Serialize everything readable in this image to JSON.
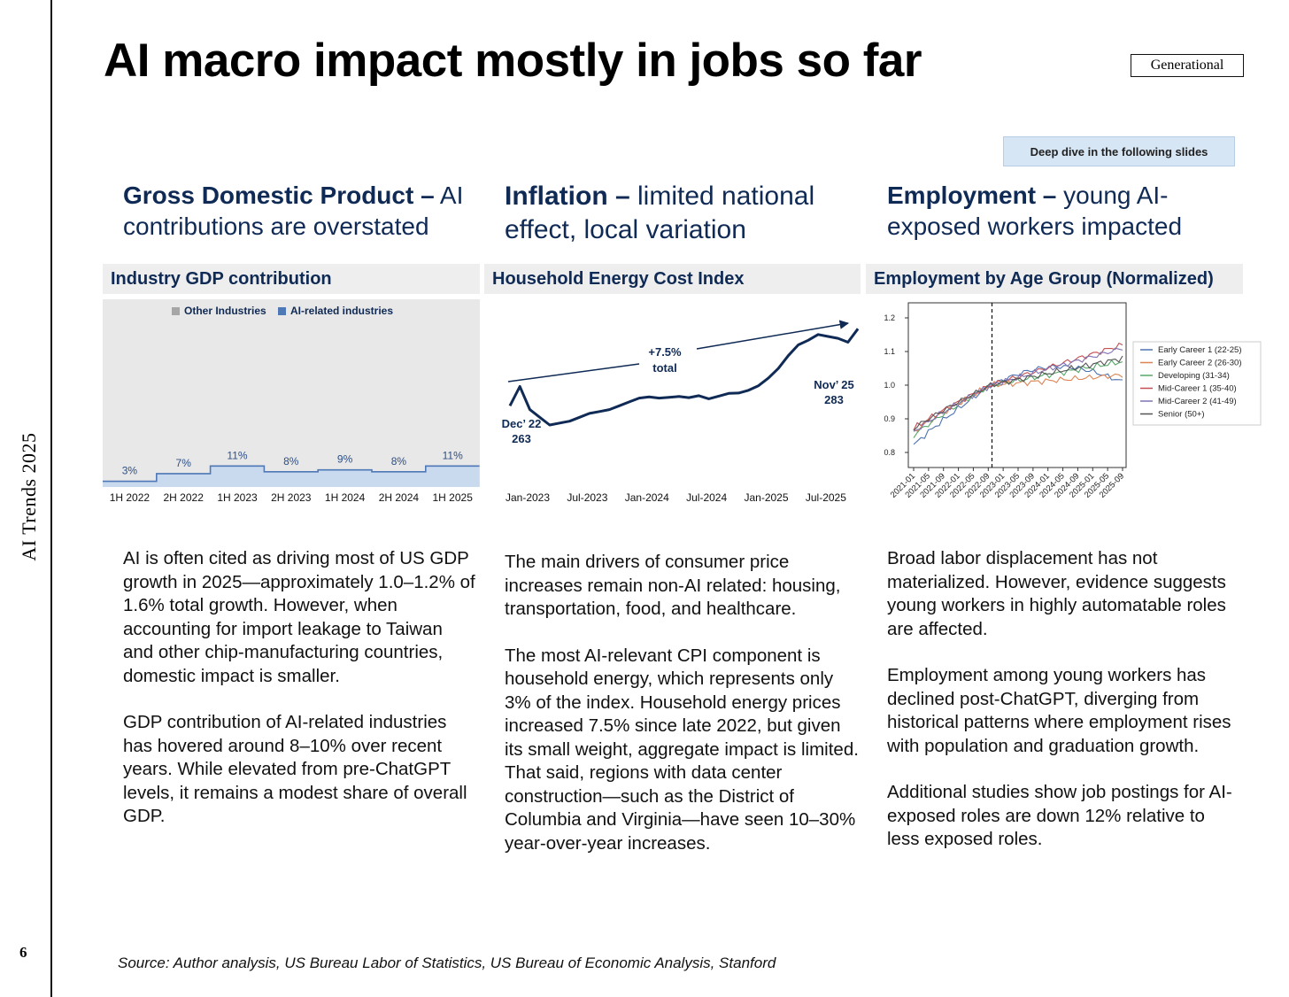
{
  "sidebar": {
    "title": "AI Trends 2025",
    "page_number": "6"
  },
  "header": {
    "title": "AI macro impact mostly in jobs so far",
    "brand": "Generational"
  },
  "callout": {
    "text": "Deep dive in the following slides"
  },
  "sections": [
    {
      "heading_bold": "Gross Domestic Product –",
      "heading_rest": " AI contributions are overstated",
      "chart_title": "Industry GDP contribution",
      "paragraphs": [
        "AI is often cited as driving most of US GDP growth in 2025—approximately 1.0–1.2% of 1.6% total growth. However, when accounting for import leakage to Taiwan and other chip-manufacturing countries, domestic impact is smaller.",
        "GDP contribution of AI-related industries has hovered around 8–10% over recent years. While elevated from pre-ChatGPT levels, it remains a modest share of overall GDP."
      ]
    },
    {
      "heading_bold": "Inflation –",
      "heading_rest": " limited national effect, local variation",
      "chart_title": "Household Energy Cost Index",
      "paragraphs": [
        "The main drivers of consumer price increases remain non-AI related: housing, transportation, food, and healthcare.",
        "The most AI-relevant CPI component is household energy, which represents only 3% of the index. Household energy prices increased 7.5% since late 2022, but given its small weight, aggregate impact is limited. That said, regions with data center construction—such as the District of Columbia and Virginia—have seen 10–30% year-over-year increases."
      ]
    },
    {
      "heading_bold": "Employment –",
      "heading_rest": " young AI-exposed workers impacted",
      "chart_title": "Employment by Age Group (Normalized)",
      "paragraphs": [
        "Broad labor displacement has not materialized. However, evidence suggests young workers in highly automatable roles are affected.",
        "Employment among young workers has declined post-ChatGPT, diverging from historical patterns where employment rises with population and graduation growth.",
        "Additional studies show job postings for AI-exposed roles are down 12% relative to less exposed roles."
      ]
    }
  ],
  "source": "Source: Author analysis, US Bureau Labor of Statistics, US Bureau of Economic Analysis, Stanford",
  "colors": {
    "navy": "#0f2a55",
    "ai_blue": "#4e79b6",
    "other_gray": "#e8e8e8"
  },
  "chart_data": [
    {
      "type": "area",
      "title": "Industry GDP contribution",
      "legend": [
        "Other Industries",
        "AI-related industries"
      ],
      "legend_position": "top-center",
      "categories": [
        "1H 2022",
        "2H 2022",
        "1H 2023",
        "2H 2023",
        "1H 2024",
        "2H 2024",
        "1H 2025"
      ],
      "series": [
        {
          "name": "AI-related industries",
          "values": [
            3,
            7,
            11,
            8,
            9,
            8,
            11
          ]
        }
      ],
      "labels": [
        "3%",
        "7%",
        "11%",
        "8%",
        "9%",
        "8%",
        "11%"
      ],
      "ylim": [
        0,
        100
      ]
    },
    {
      "type": "line",
      "title": "Household Energy Cost Index",
      "x_ticks": [
        "Jan-2023",
        "Jul-2023",
        "Jan-2024",
        "Jul-2024",
        "Jan-2025",
        "Jul-2025"
      ],
      "x_range": [
        0,
        35
      ],
      "values": [
        263,
        268,
        262,
        260,
        258,
        258.5,
        259,
        260,
        261,
        261.5,
        262,
        263,
        264,
        265,
        265.3,
        265,
        265.2,
        265.4,
        265.1,
        265.6,
        264.8,
        265.5,
        266.2,
        266.3,
        267,
        268.2,
        270.2,
        272.7,
        276,
        278.8,
        280,
        281.5,
        281,
        280.5,
        279.5,
        283
      ],
      "ylim": [
        245,
        300
      ],
      "annotations": [
        {
          "label_line1": "Dec’ 22",
          "label_line2": "263"
        },
        {
          "label_line1": "Nov’ 25",
          "label_line2": "283"
        },
        {
          "label_line1": "+7.5%",
          "label_line2": "total"
        }
      ]
    },
    {
      "type": "line",
      "title": "Employment by Age Group (Normalized)",
      "x_ticks": [
        "2021-01",
        "2021-05",
        "2021-09",
        "2022-01",
        "2022-05",
        "2022-09",
        "2023-01",
        "2023-05",
        "2023-09",
        "2024-01",
        "2024-05",
        "2024-09",
        "2025-01",
        "2025-05",
        "2025-09"
      ],
      "y_ticks": [
        "0.8",
        "0.9",
        "1.0",
        "1.1",
        "1.2"
      ],
      "ylim": [
        0.75,
        1.25
      ],
      "vline_at": "2022-10",
      "legend_position": "right",
      "series": [
        {
          "name": "Early Career 1 (22-25)",
          "color": "#4c72b0",
          "start": 0.82,
          "end": 1.01
        },
        {
          "name": "Early Career 2 (26-30)",
          "color": "#dd8452",
          "start": 0.86,
          "end": 1.03
        },
        {
          "name": "Developing (31-34)",
          "color": "#55a868",
          "start": 0.85,
          "end": 1.07
        },
        {
          "name": "Mid-Career 1 (35-40)",
          "color": "#c44e52",
          "start": 0.87,
          "end": 1.12
        },
        {
          "name": "Mid-Career 2 (41-49)",
          "color": "#8172b3",
          "start": 0.86,
          "end": 1.11
        },
        {
          "name": "Senior (50+)",
          "color": "#555555",
          "start": 0.87,
          "end": 1.08
        }
      ]
    }
  ]
}
